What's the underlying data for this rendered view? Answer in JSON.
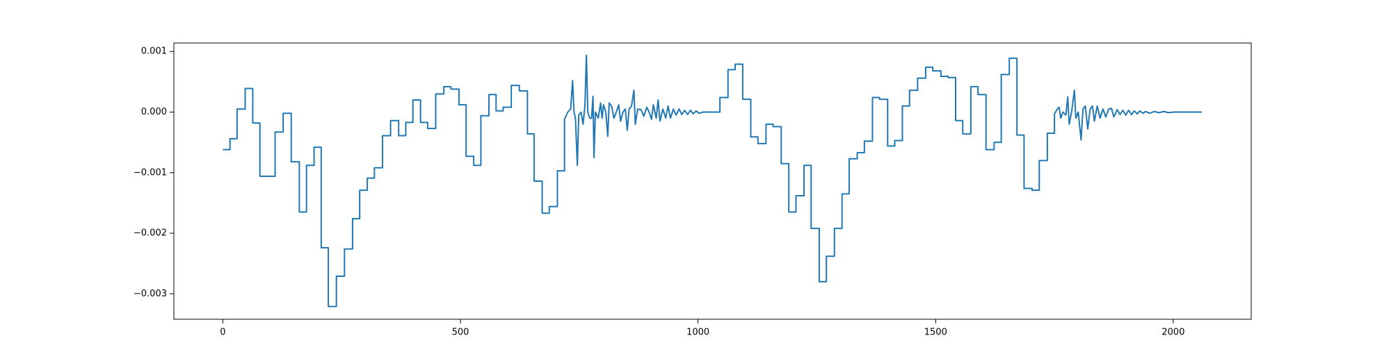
{
  "chart_data": {
    "type": "line",
    "xlim": [
      -103,
      2164
    ],
    "xticks": [
      0,
      500,
      1000,
      1500,
      2000
    ],
    "ylim": [
      -0.00342,
      0.00114
    ],
    "yticks": [
      {
        "value": -0.003,
        "label": "−0.003"
      },
      {
        "value": -0.002,
        "label": "−0.002"
      },
      {
        "value": -0.001,
        "label": "−0.001"
      },
      {
        "value": 0,
        "label": "0.000"
      },
      {
        "value": 0.001,
        "label": "0.001"
      }
    ],
    "grid": false,
    "series": [
      {
        "color": "#1f77b4",
        "x": [
          0,
          15,
          15,
          30,
          30,
          47,
          47,
          63,
          63,
          78,
          78,
          110,
          110,
          127,
          127,
          144,
          144,
          161,
          161,
          176,
          176,
          192,
          192,
          207,
          207,
          222,
          222,
          239,
          239,
          256,
          256,
          273,
          273,
          288,
          288,
          304,
          304,
          319,
          319,
          336,
          336,
          353,
          353,
          370,
          370,
          385,
          385,
          400,
          400,
          416,
          416,
          431,
          431,
          448,
          448,
          465,
          465,
          480,
          480,
          497,
          497,
          512,
          512,
          528,
          528,
          543,
          543,
          560,
          560,
          575,
          575,
          590,
          590,
          607,
          607,
          624,
          624,
          641,
          641,
          655,
          655,
          672,
          672,
          687,
          687,
          704,
          704,
          719,
          719,
          726,
          732,
          736,
          739,
          742,
          746,
          749,
          754,
          758,
          762,
          765,
          768,
          772,
          776,
          779,
          781,
          784,
          790,
          795,
          798,
          801,
          806,
          810,
          813,
          818,
          823,
          828,
          833,
          837,
          842,
          847,
          851,
          855,
          860,
          865,
          868,
          873,
          880,
          886,
          892,
          897,
          902,
          906,
          912,
          916,
          920,
          926,
          932,
          937,
          942,
          948,
          954,
          960,
          966,
          972,
          978,
          984,
          990,
          996,
          1002,
          1010,
          1046,
          1046,
          1063,
          1063,
          1078,
          1078,
          1094,
          1094,
          1111,
          1111,
          1126,
          1126,
          1143,
          1143,
          1158,
          1158,
          1175,
          1175,
          1191,
          1191,
          1206,
          1206,
          1223,
          1223,
          1238,
          1238,
          1255,
          1255,
          1270,
          1270,
          1287,
          1287,
          1303,
          1303,
          1318,
          1318,
          1335,
          1335,
          1350,
          1350,
          1367,
          1367,
          1382,
          1382,
          1399,
          1399,
          1414,
          1414,
          1430,
          1430,
          1445,
          1445,
          1462,
          1462,
          1479,
          1479,
          1494,
          1494,
          1511,
          1511,
          1526,
          1526,
          1542,
          1542,
          1557,
          1557,
          1574,
          1574,
          1589,
          1589,
          1606,
          1606,
          1623,
          1623,
          1638,
          1638,
          1655,
          1655,
          1671,
          1671,
          1686,
          1686,
          1703,
          1703,
          1718,
          1718,
          1735,
          1735,
          1750,
          1750,
          1756,
          1760,
          1763,
          1768,
          1774,
          1778,
          1781,
          1786,
          1792,
          1795,
          1800,
          1806,
          1810,
          1815,
          1820,
          1825,
          1830,
          1834,
          1840,
          1846,
          1852,
          1858,
          1864,
          1870,
          1875,
          1882,
          1888,
          1894,
          1900,
          1906,
          1912,
          1918,
          1924,
          1930,
          1936,
          1942,
          1950,
          1960,
          1970,
          1980,
          1990,
          2000,
          2030,
          2060
        ],
        "values": [
          -0.00062,
          -0.00062,
          -0.00044,
          -0.00044,
          5e-05,
          5e-05,
          0.00039,
          0.00039,
          -0.00018,
          -0.00018,
          -0.00106,
          -0.00106,
          -0.00033,
          -0.00033,
          -2e-05,
          -2e-05,
          -0.00082,
          -0.00082,
          -0.00165,
          -0.00165,
          -0.00088,
          -0.00088,
          -0.00058,
          -0.00058,
          -0.00224,
          -0.00224,
          -0.00321,
          -0.00321,
          -0.00271,
          -0.00271,
          -0.00226,
          -0.00226,
          -0.00176,
          -0.00176,
          -0.00129,
          -0.00129,
          -0.00109,
          -0.00109,
          -0.00092,
          -0.00092,
          -0.00039,
          -0.00039,
          -0.00014,
          -0.00014,
          -0.00039,
          -0.00039,
          -0.00017,
          -0.00017,
          0.0002,
          0.0002,
          -0.00017,
          -0.00017,
          -0.00027,
          -0.00027,
          0.0003,
          0.0003,
          0.00042,
          0.00042,
          0.00038,
          0.00038,
          0.00012,
          0.00012,
          -0.00073,
          -0.00073,
          -0.00088,
          -0.00088,
          -6e-05,
          -6e-05,
          0.00029,
          0.00029,
          2e-05,
          2e-05,
          8e-05,
          8e-05,
          0.00044,
          0.00044,
          0.00035,
          0.00035,
          -0.00036,
          -0.00036,
          -0.00114,
          -0.00114,
          -0.00167,
          -0.00167,
          -0.00156,
          -0.00156,
          -0.00097,
          -0.00097,
          -0.00012,
          0,
          5e-05,
          0.00052,
          0,
          -0.0001,
          -0.00088,
          -5e-05,
          0,
          -0.0002,
          0.0001,
          0.00094,
          0,
          -0.0001,
          -0.0001,
          0.00026,
          -0.00075,
          0,
          -0.0001,
          0.00015,
          -0.0001,
          0.00012,
          0,
          -0.0004,
          0.00015,
          0.0001,
          -0.0001,
          0,
          0.00012,
          -0.00015,
          0,
          5e-05,
          -0.0003,
          5e-05,
          0.0001,
          0.00036,
          -0.0002,
          5e-05,
          4e-05,
          -7e-05,
          8e-05,
          0,
          -0.00012,
          0.00012,
          -0.0001,
          0.0002,
          -0.00015,
          5e-05,
          -0.0001,
          0.0001,
          -0.0001,
          5e-05,
          -5e-05,
          5e-05,
          -4e-05,
          3e-05,
          -4e-05,
          3e-05,
          -3e-05,
          2e-05,
          -2e-05,
          0,
          0,
          0.00024,
          0.00024,
          0.0007,
          0.0007,
          0.00079,
          0.00079,
          0.00021,
          0.00021,
          -0.00041,
          -0.00041,
          -0.00052,
          -0.00052,
          -0.0002,
          -0.0002,
          -0.00024,
          -0.00024,
          -0.00085,
          -0.00085,
          -0.00165,
          -0.00165,
          -0.00138,
          -0.00138,
          -0.00088,
          -0.00088,
          -0.00192,
          -0.00192,
          -0.0028,
          -0.0028,
          -0.00238,
          -0.00238,
          -0.00192,
          -0.00192,
          -0.00135,
          -0.00135,
          -0.00077,
          -0.00077,
          -0.00067,
          -0.00067,
          -0.00048,
          -0.00048,
          0.00024,
          0.00024,
          0.00021,
          0.00021,
          -0.00056,
          -0.00056,
          -0.00047,
          -0.00047,
          0.0001,
          0.0001,
          0.00036,
          0.00036,
          0.00056,
          0.00056,
          0.00074,
          0.00074,
          0.00068,
          0.00068,
          0.00059,
          0.00059,
          0.00057,
          0.00057,
          -0.00014,
          -0.00014,
          -0.00036,
          -0.00036,
          0.00042,
          0.00042,
          0.00029,
          0.00029,
          -0.00062,
          -0.00062,
          -0.0005,
          -0.0005,
          0.00062,
          0.00062,
          0.00089,
          0.00089,
          -0.00038,
          -0.00038,
          -0.00126,
          -0.00126,
          -0.00129,
          -0.00129,
          -0.0008,
          -0.0008,
          -0.00035,
          -0.00035,
          -3e-05,
          5e-05,
          8e-05,
          -0.0001,
          0,
          -5e-05,
          0.00025,
          -0.0002,
          0,
          0.00036,
          -0.0001,
          0,
          -0.00046,
          5e-05,
          0.0001,
          -0.00028,
          5e-05,
          0.0001,
          -0.00015,
          0.0001,
          -0.0001,
          5e-05,
          -8e-05,
          5e-05,
          6e-05,
          -8e-05,
          4e-05,
          -4e-05,
          3e-05,
          -5e-05,
          3e-05,
          -4e-05,
          2e-05,
          -3e-05,
          2e-05,
          -2e-05,
          1e-05,
          -2e-05,
          1e-05,
          -1e-05,
          1e-05,
          -1e-05,
          0,
          0,
          0
        ]
      }
    ]
  }
}
